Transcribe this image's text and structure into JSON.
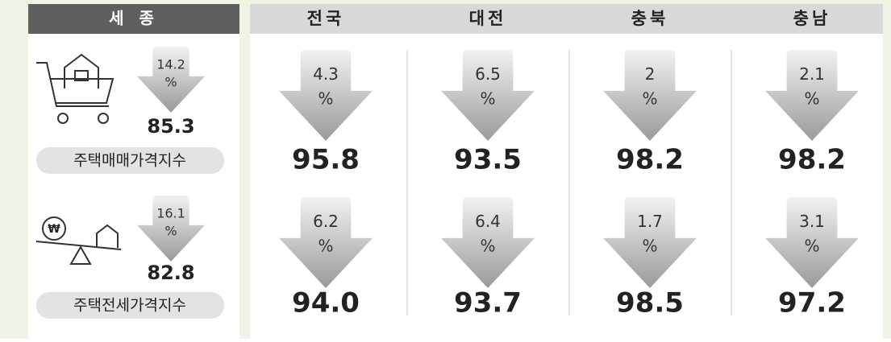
{
  "sejong": {
    "title": "세 종",
    "rows": [
      {
        "label": "주택매매가격지수",
        "change": 14.2,
        "index": "85.3"
      },
      {
        "label": "주택전세가격지수",
        "change": 16.1,
        "index": "82.8"
      }
    ]
  },
  "unit": "%",
  "currency_symbol": "₩",
  "regions": [
    {
      "name": "전국",
      "rows": [
        {
          "change": 4.3,
          "index": "95.8"
        },
        {
          "change": 6.2,
          "index": "94.0"
        }
      ]
    },
    {
      "name": "대전",
      "rows": [
        {
          "change": 6.5,
          "index": "93.5"
        },
        {
          "change": 6.4,
          "index": "93.7"
        }
      ]
    },
    {
      "name": "충북",
      "rows": [
        {
          "change": 2.0,
          "index": "98.2"
        },
        {
          "change": 1.7,
          "index": "98.5"
        }
      ]
    },
    {
      "name": "충남",
      "rows": [
        {
          "change": 2.1,
          "index": "98.2"
        },
        {
          "change": 3.1,
          "index": "97.2"
        }
      ]
    }
  ]
}
